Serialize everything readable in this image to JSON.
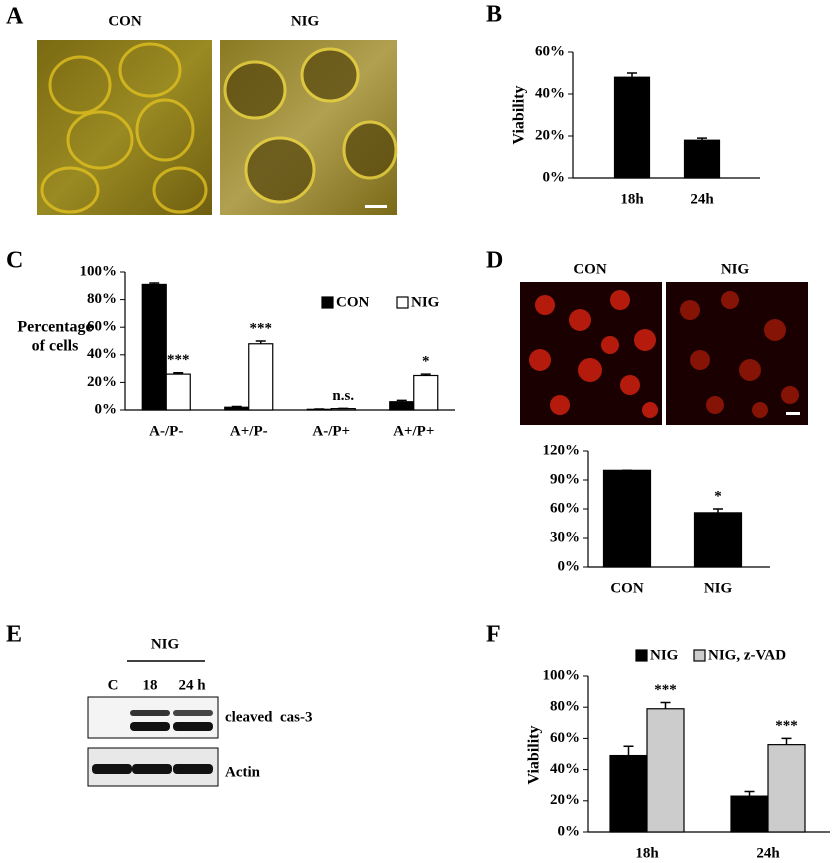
{
  "panels": {
    "letters": [
      "A",
      "B",
      "C",
      "D",
      "E",
      "F"
    ],
    "a": {
      "labels": [
        "CON",
        "NIG"
      ]
    },
    "d": {
      "labels": [
        "CON",
        "NIG"
      ]
    },
    "e": {
      "group": "NIG",
      "lanes": [
        "C",
        "18",
        "24 h"
      ],
      "bands": [
        "cleaved  cas-3",
        "Actin"
      ]
    }
  },
  "chart_data": [
    {
      "type": "bar",
      "ylabel": "Viability",
      "categories": [
        "18h",
        "24h"
      ],
      "values": [
        48,
        18
      ],
      "errors": [
        2,
        1
      ],
      "color": "#000000",
      "ylim": [
        0,
        60
      ],
      "yticks": [
        {
          "value": 0,
          "label": "0%"
        },
        {
          "value": 20,
          "label": "20%"
        },
        {
          "value": 40,
          "label": "40%"
        },
        {
          "value": 60,
          "label": "60%"
        }
      ]
    },
    {
      "type": "bar",
      "ylabel": [
        "Percentage",
        "of cells"
      ],
      "categories": [
        "A-/P-",
        "A+/P-",
        "A-/P+",
        "A+/P+"
      ],
      "series": [
        {
          "name": "CON",
          "color": "#000000",
          "values": [
            91,
            2,
            0.5,
            6
          ],
          "errors": [
            1,
            0.5,
            0.2,
            1
          ]
        },
        {
          "name": "NIG",
          "color": "#ffffff",
          "values": [
            26,
            48,
            1,
            25
          ],
          "errors": [
            1,
            2,
            0.2,
            1
          ]
        }
      ],
      "annotations": [
        "***",
        "***",
        "n.s.",
        "*"
      ],
      "ylim": [
        0,
        100
      ],
      "yticks": [
        {
          "value": 0,
          "label": "0%"
        },
        {
          "value": 20,
          "label": "20%"
        },
        {
          "value": 40,
          "label": "40%"
        },
        {
          "value": 60,
          "label": "60%"
        },
        {
          "value": 80,
          "label": "80%"
        },
        {
          "value": 100,
          "label": "100%"
        }
      ]
    },
    {
      "type": "bar",
      "categories": [
        "CON",
        "NIG"
      ],
      "values": [
        100,
        56
      ],
      "errors": [
        0,
        4
      ],
      "color": "#000000",
      "annotations": [
        null,
        "*"
      ],
      "ylim": [
        0,
        120
      ],
      "yticks": [
        {
          "value": 0,
          "label": "0%"
        },
        {
          "value": 30,
          "label": "30%"
        },
        {
          "value": 60,
          "label": "60%"
        },
        {
          "value": 90,
          "label": "90%"
        },
        {
          "value": 120,
          "label": "120%"
        }
      ]
    },
    {
      "type": "bar",
      "ylabel": "Viability",
      "categories": [
        "18h",
        "24h"
      ],
      "series": [
        {
          "name": "NIG",
          "color": "#000000",
          "values": [
            49,
            23
          ],
          "errors": [
            6,
            3
          ]
        },
        {
          "name": "NIG, z-VAD",
          "color": "#cccccc",
          "values": [
            79,
            56
          ],
          "errors": [
            4,
            4
          ]
        }
      ],
      "annotations": [
        "***",
        "***"
      ],
      "ylim": [
        0,
        100
      ],
      "yticks": [
        {
          "value": 0,
          "label": "0%"
        },
        {
          "value": 20,
          "label": "20%"
        },
        {
          "value": 40,
          "label": "40%"
        },
        {
          "value": 60,
          "label": "60%"
        },
        {
          "value": 80,
          "label": "80%"
        },
        {
          "value": 100,
          "label": "100%"
        }
      ]
    }
  ]
}
